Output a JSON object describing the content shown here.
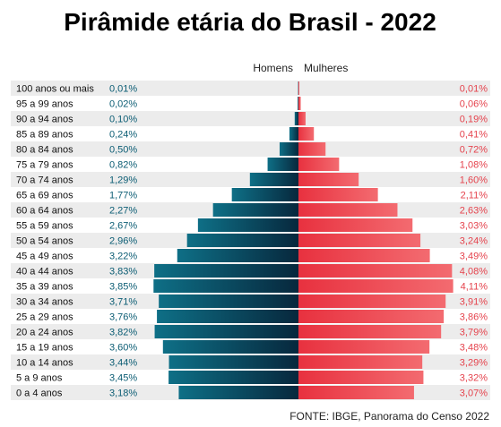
{
  "chart_data": {
    "type": "bar",
    "orientation": "horizontal-pyramid",
    "title": "Pirâmide etária do Brasil - 2022",
    "categories": [
      "100 anos ou mais",
      "95 a 99 anos",
      "90 a 94 anos",
      "85 a 89 anos",
      "80 a 84 anos",
      "75 a 79 anos",
      "70 a 74 anos",
      "65 a 69 anos",
      "60 a 64 anos",
      "55 a 59 anos",
      "50 a 54 anos",
      "45 a 49 anos",
      "40 a 44 anos",
      "35 a 39 anos",
      "30 a 34 anos",
      "25 a 29 anos",
      "20 a 24 anos",
      "15 a 19 anos",
      "10 a 14 anos",
      "5 a 9 anos",
      "0 a 4 anos"
    ],
    "series": [
      {
        "name": "Homens",
        "color": "#0c5d74",
        "values": [
          0.01,
          0.02,
          0.1,
          0.24,
          0.5,
          0.82,
          1.29,
          1.77,
          2.27,
          2.67,
          2.96,
          3.22,
          3.83,
          3.85,
          3.71,
          3.76,
          3.82,
          3.6,
          3.44,
          3.45,
          3.18
        ],
        "labels": [
          "0,01%",
          "0,02%",
          "0,10%",
          "0,24%",
          "0,50%",
          "0,82%",
          "1,29%",
          "1,77%",
          "2,27%",
          "2,67%",
          "2,96%",
          "3,22%",
          "3,83%",
          "3,85%",
          "3,71%",
          "3,76%",
          "3,82%",
          "3,60%",
          "3,44%",
          "3,45%",
          "3,18%"
        ]
      },
      {
        "name": "Mulheres",
        "color": "#e5434d",
        "values": [
          0.01,
          0.06,
          0.19,
          0.41,
          0.72,
          1.08,
          1.6,
          2.11,
          2.63,
          3.03,
          3.24,
          3.49,
          4.08,
          4.11,
          3.91,
          3.86,
          3.79,
          3.48,
          3.29,
          3.32,
          3.07
        ],
        "labels": [
          "0,01%",
          "0,06%",
          "0,19%",
          "0,41%",
          "0,72%",
          "1,08%",
          "1,60%",
          "2,11%",
          "2,63%",
          "3,03%",
          "3,24%",
          "3,49%",
          "4,08%",
          "4,11%",
          "3,91%",
          "3,86%",
          "3,79%",
          "3,48%",
          "3,29%",
          "3,32%",
          "3,07%"
        ]
      }
    ],
    "legend": {
      "male": "Homens",
      "female": "Mulheres"
    },
    "source": "FONTE: IBGE, Panorama do Censo 2022",
    "grid": false
  }
}
